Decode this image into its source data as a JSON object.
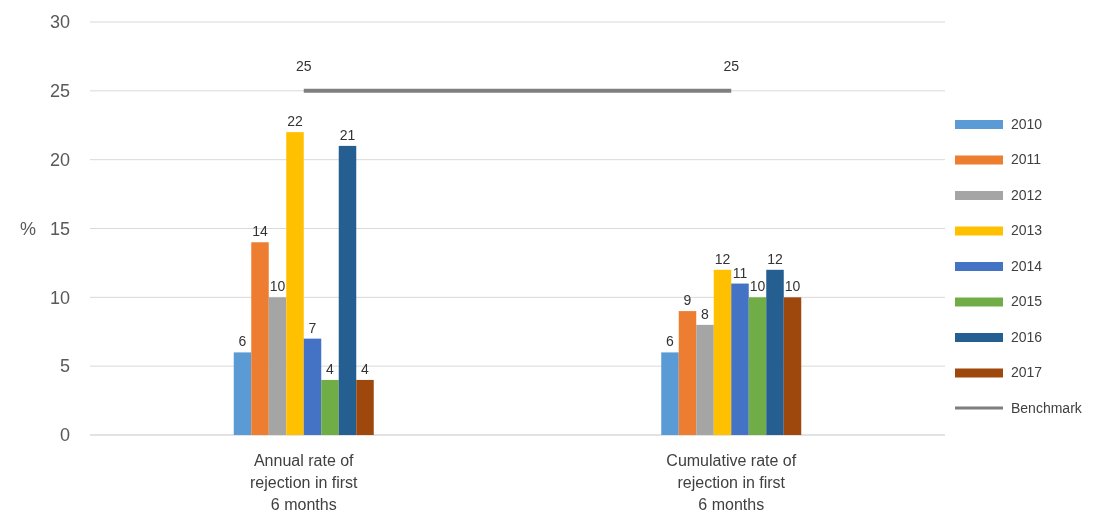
{
  "chart_data": {
    "type": "bar",
    "ylabel": "%",
    "categories": [
      "Annual rate of rejection in first 6 months",
      "Cumulative rate of rejection in first 6 months"
    ],
    "series": [
      {
        "name": "2010",
        "color": "#5b9bd5",
        "values": [
          6,
          6
        ]
      },
      {
        "name": "2011",
        "color": "#ed7d31",
        "values": [
          14,
          9
        ]
      },
      {
        "name": "2012",
        "color": "#a5a5a5",
        "values": [
          10,
          8
        ]
      },
      {
        "name": "2013",
        "color": "#ffc000",
        "values": [
          22,
          12
        ]
      },
      {
        "name": "2014",
        "color": "#4472c4",
        "values": [
          7,
          11
        ]
      },
      {
        "name": "2015",
        "color": "#70ad47",
        "values": [
          4,
          10
        ]
      },
      {
        "name": "2016",
        "color": "#255e91",
        "values": [
          21,
          12
        ]
      },
      {
        "name": "2017",
        "color": "#9e480e",
        "values": [
          4,
          10
        ]
      },
      {
        "name": "Benchmark",
        "type": "line",
        "color": "#7f7f7f",
        "values": [
          25,
          25
        ]
      }
    ],
    "ylim": [
      0,
      30
    ],
    "yticks": [
      0,
      5,
      10,
      15,
      20,
      25,
      30
    ],
    "grid": "y",
    "legend": "right",
    "data_labels": true
  }
}
